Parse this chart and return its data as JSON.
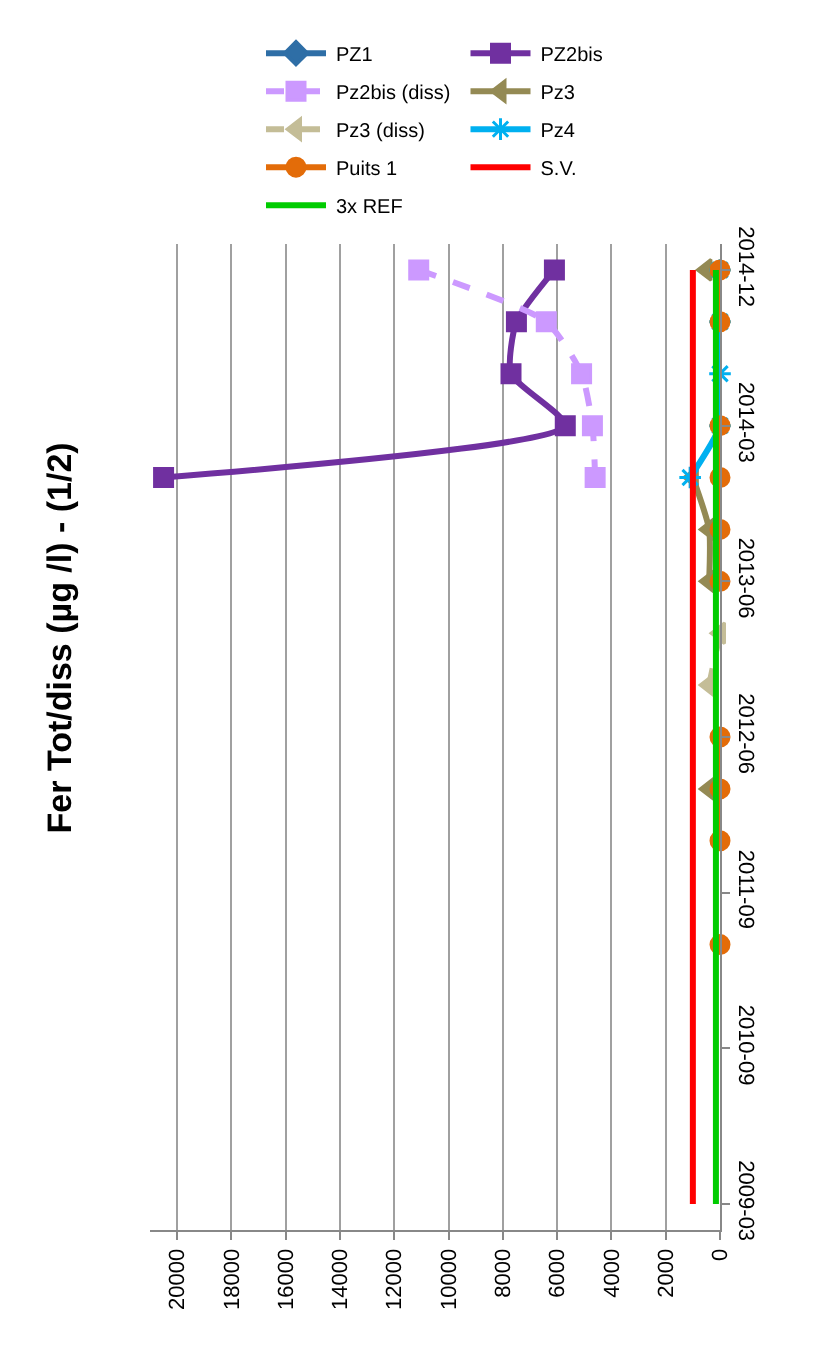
{
  "chart_data": {
    "type": "line",
    "title": "Fer Tot/diss (µg /l) - (1/2)",
    "orientation": "horizontal",
    "categories": [
      "2014-12",
      null,
      null,
      "2014-03",
      null,
      null,
      "2013-06",
      null,
      null,
      "2012-06",
      null,
      null,
      "2011-09",
      null,
      null,
      "2010-09",
      null,
      null,
      "2009-03"
    ],
    "xlim": [
      21000,
      0
    ],
    "xticks": [
      20000,
      18000,
      16000,
      14000,
      12000,
      10000,
      8000,
      6000,
      4000,
      2000,
      0
    ],
    "grid": "x",
    "legend": "top",
    "series": [
      {
        "name": "PZ1",
        "color": "#2e6ea6",
        "marker": "diamond",
        "line_style": "solid",
        "values": [
          null,
          null,
          null,
          null,
          null,
          null,
          null,
          null,
          null,
          null,
          null,
          null,
          null,
          null,
          null,
          null,
          null,
          null,
          null
        ]
      },
      {
        "name": "PZ2bis",
        "color": "#7030a0",
        "marker": "square",
        "line_style": "solid",
        "values": [
          6100,
          7500,
          7700,
          5700,
          20500,
          null,
          null,
          null,
          null,
          null,
          null,
          null,
          null,
          null,
          null,
          null,
          null,
          null,
          null
        ]
      },
      {
        "name": "Pz2bis (diss)",
        "color": "#cc99ff",
        "marker": "square",
        "line_style": "dashed",
        "values": [
          11100,
          6400,
          5100,
          4700,
          4600,
          null,
          null,
          null,
          null,
          null,
          null,
          null,
          null,
          null,
          null,
          null,
          null,
          null,
          null
        ]
      },
      {
        "name": "Pz3",
        "color": "#948a54",
        "marker": "triangle",
        "line_style": "solid",
        "values": [
          500,
          null,
          null,
          null,
          1000,
          400,
          400,
          null,
          null,
          null,
          400,
          null,
          null,
          null,
          null,
          null,
          null,
          null,
          null
        ]
      },
      {
        "name": "Pz3 (diss)",
        "color": "#c4bd97",
        "marker": "triangle",
        "line_style": "dashed",
        "values": [
          null,
          null,
          null,
          null,
          null,
          null,
          null,
          0,
          400,
          null,
          null,
          null,
          null,
          null,
          null,
          null,
          null,
          null,
          null
        ]
      },
      {
        "name": "Pz4",
        "color": "#00b0f0",
        "marker": "cross",
        "line_style": "solid",
        "values": [
          0,
          0,
          0,
          0,
          1100,
          null,
          null,
          null,
          null,
          null,
          null,
          null,
          null,
          null,
          null,
          null,
          null,
          null,
          null
        ]
      },
      {
        "name": "Puits 1",
        "color": "#e36c09",
        "marker": "circle",
        "line_style": "solid",
        "values": [
          0,
          0,
          null,
          0,
          0,
          0,
          0,
          null,
          null,
          0,
          0,
          0,
          null,
          0,
          null,
          null,
          null,
          null,
          null
        ]
      },
      {
        "name": "S.V.",
        "color": "#ff0000",
        "marker": "none",
        "line_style": "solid",
        "values": [
          1000,
          1000,
          1000,
          1000,
          1000,
          1000,
          1000,
          1000,
          1000,
          1000,
          1000,
          1000,
          1000,
          1000,
          1000,
          1000,
          1000,
          1000,
          1000
        ]
      },
      {
        "name": "3x REF",
        "color": "#00cc00",
        "marker": "none",
        "line_style": "solid",
        "values": [
          150,
          150,
          150,
          150,
          150,
          150,
          150,
          150,
          150,
          150,
          150,
          150,
          150,
          150,
          150,
          150,
          150,
          150,
          150
        ]
      }
    ]
  }
}
